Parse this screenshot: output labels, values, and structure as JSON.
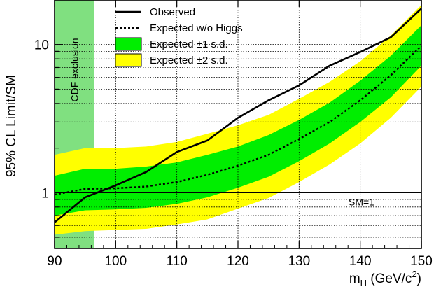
{
  "chart_data": {
    "type": "line",
    "ylabel": "95% CL Limit/SM",
    "xlabel_main": "m",
    "xlabel_sub": "H",
    "xlabel_rest": " (GeV/c",
    "xlabel_sup": "2",
    "xlabel_end": ")",
    "xlim": [
      90,
      150
    ],
    "ylim": [
      0.42,
      20
    ],
    "yscale": "log",
    "grid": true,
    "legend_position": "top-center",
    "x_ticks": [
      {
        "value": 90,
        "label": "90"
      },
      {
        "value": 100,
        "label": "100"
      },
      {
        "value": 110,
        "label": "110"
      },
      {
        "value": 120,
        "label": "120"
      },
      {
        "value": 130,
        "label": "130"
      },
      {
        "value": 140,
        "label": "140"
      },
      {
        "value": 150,
        "label": "150"
      }
    ],
    "y_ticks": [
      {
        "value": 1,
        "label": "1"
      },
      {
        "value": 10,
        "label": "10"
      }
    ],
    "x": [
      90,
      95,
      100,
      105,
      110,
      115,
      120,
      125,
      130,
      135,
      140,
      145,
      150
    ],
    "series": [
      {
        "name": "Observed",
        "style": "solid",
        "values": [
          0.63,
          0.93,
          1.12,
          1.38,
          1.88,
          2.25,
          3.2,
          4.2,
          5.3,
          7.2,
          8.9,
          11.2,
          17.5
        ]
      },
      {
        "name": "Expected w/o Higgs",
        "style": "dotted",
        "values": [
          0.97,
          1.06,
          1.07,
          1.1,
          1.18,
          1.32,
          1.52,
          1.8,
          2.3,
          3.0,
          4.2,
          6.2,
          9.8
        ]
      }
    ],
    "bands": [
      {
        "name": "Expected ±2 s.d.",
        "color": "#ffff00",
        "lower": [
          0.52,
          0.55,
          0.56,
          0.57,
          0.61,
          0.66,
          0.78,
          0.92,
          1.18,
          1.55,
          2.15,
          3.2,
          5.2
        ],
        "upper": [
          1.8,
          2.0,
          2.0,
          2.05,
          2.2,
          2.5,
          2.85,
          3.35,
          4.3,
          5.6,
          7.7,
          11.5,
          18.5
        ]
      },
      {
        "name": "Expected ±1 s.d.",
        "color": "#00ee00",
        "lower": [
          0.7,
          0.76,
          0.77,
          0.79,
          0.84,
          0.93,
          1.08,
          1.28,
          1.63,
          2.15,
          3.0,
          4.4,
          7.2
        ],
        "upper": [
          1.3,
          1.45,
          1.45,
          1.5,
          1.6,
          1.8,
          2.05,
          2.45,
          3.1,
          4.05,
          5.7,
          8.4,
          13.5
        ]
      }
    ],
    "reference_line": {
      "value": 1,
      "label": "SM=1"
    },
    "exclusion_region": {
      "from": 90,
      "to": 96.5,
      "label": "CDF exclusion",
      "color": "#80e080"
    },
    "legend": [
      {
        "label": "Observed",
        "kind": "line-solid"
      },
      {
        "label": "Expected w/o Higgs",
        "kind": "line-dotted"
      },
      {
        "label": "Expected ±1 s.d.",
        "kind": "box",
        "color": "#00ee00"
      },
      {
        "label": "Expected ±2 s.d.",
        "kind": "box",
        "color": "#ffff00"
      }
    ]
  }
}
